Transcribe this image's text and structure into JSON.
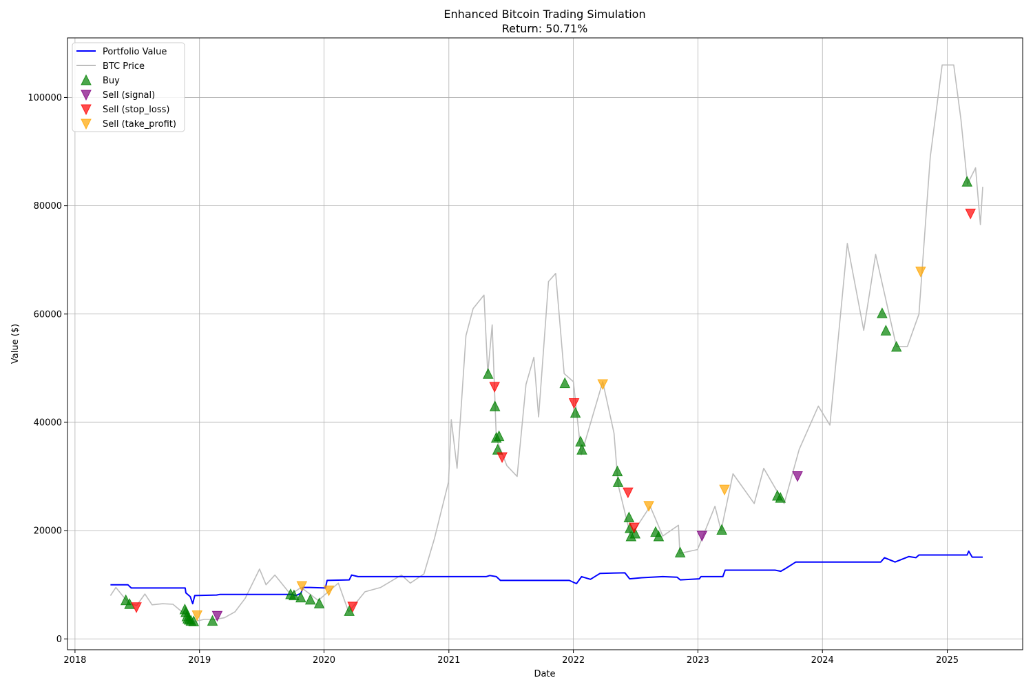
{
  "chart_data": {
    "type": "line",
    "title": "Enhanced Bitcoin Trading Simulation",
    "subtitle": "Return: 50.71%",
    "xlabel": "Date",
    "ylabel": "Value ($)",
    "xlim": [
      "2017-12-10",
      "2025-08-10"
    ],
    "ylim": [
      -2000,
      111000
    ],
    "x_ticks": [
      "2018",
      "2019",
      "2020",
      "2021",
      "2022",
      "2023",
      "2024",
      "2025"
    ],
    "y_ticks": [
      "0",
      "20000",
      "40000",
      "60000",
      "80000",
      "100000"
    ],
    "grid": true,
    "legend_position": "top-left",
    "colors": {
      "portfolio": "#0000ff",
      "btc": "#bdbdbd",
      "buy": "#008000",
      "sell_signal": "#800080",
      "sell_stop_loss": "#ff0000",
      "sell_take_profit": "#ffa500"
    },
    "series": [
      {
        "name": "Portfolio Value",
        "points": [
          [
            "2018-04-15",
            10000
          ],
          [
            "2018-06-05",
            10000
          ],
          [
            "2018-06-10",
            9700
          ],
          [
            "2018-06-15",
            9400
          ],
          [
            "2018-11-20",
            9400
          ],
          [
            "2018-11-22",
            8500
          ],
          [
            "2018-12-05",
            7800
          ],
          [
            "2018-12-12",
            6500
          ],
          [
            "2018-12-18",
            8000
          ],
          [
            "2019-02-20",
            8100
          ],
          [
            "2019-03-01",
            8200
          ],
          [
            "2019-10-01",
            8200
          ],
          [
            "2019-10-10",
            8000
          ],
          [
            "2019-10-25",
            8400
          ],
          [
            "2019-11-01",
            9500
          ],
          [
            "2019-11-20",
            9500
          ],
          [
            "2020-01-05",
            9400
          ],
          [
            "2020-01-10",
            10800
          ],
          [
            "2020-03-15",
            10900
          ],
          [
            "2020-03-22",
            11800
          ],
          [
            "2020-04-10",
            11500
          ],
          [
            "2021-04-20",
            11500
          ],
          [
            "2021-05-01",
            11700
          ],
          [
            "2021-05-20",
            11500
          ],
          [
            "2021-06-01",
            10800
          ],
          [
            "2021-12-20",
            10800
          ],
          [
            "2022-01-10",
            10200
          ],
          [
            "2022-01-25",
            11500
          ],
          [
            "2022-02-20",
            11000
          ],
          [
            "2022-03-20",
            12100
          ],
          [
            "2022-06-01",
            12200
          ],
          [
            "2022-06-15",
            11100
          ],
          [
            "2022-07-20",
            11300
          ],
          [
            "2022-09-20",
            11500
          ],
          [
            "2022-11-01",
            11400
          ],
          [
            "2022-11-10",
            10900
          ],
          [
            "2023-01-05",
            11100
          ],
          [
            "2023-01-10",
            11500
          ],
          [
            "2023-03-15",
            11500
          ],
          [
            "2023-03-22",
            12700
          ],
          [
            "2023-08-15",
            12700
          ],
          [
            "2023-09-01",
            12500
          ],
          [
            "2023-09-15",
            13000
          ],
          [
            "2023-10-15",
            14200
          ],
          [
            "2024-06-20",
            14200
          ],
          [
            "2024-07-01",
            15000
          ],
          [
            "2024-08-01",
            14200
          ],
          [
            "2024-09-10",
            15200
          ],
          [
            "2024-10-01",
            15000
          ],
          [
            "2024-10-10",
            15500
          ],
          [
            "2025-02-28",
            15500
          ],
          [
            "2025-03-05",
            16200
          ],
          [
            "2025-03-15",
            15100
          ],
          [
            "2025-04-15",
            15100
          ]
        ]
      },
      {
        "name": "BTC Price",
        "points": [
          [
            "2018-04-15",
            8000
          ],
          [
            "2018-05-01",
            9500
          ],
          [
            "2018-05-20",
            8000
          ],
          [
            "2018-06-10",
            6500
          ],
          [
            "2018-07-01",
            6200
          ],
          [
            "2018-07-25",
            8300
          ],
          [
            "2018-08-15",
            6300
          ],
          [
            "2018-09-15",
            6500
          ],
          [
            "2018-10-15",
            6400
          ],
          [
            "2018-11-20",
            4500
          ],
          [
            "2018-12-15",
            3200
          ],
          [
            "2019-01-15",
            3600
          ],
          [
            "2019-02-15",
            3600
          ],
          [
            "2019-03-15",
            3900
          ],
          [
            "2019-04-15",
            5000
          ],
          [
            "2019-05-15",
            7500
          ],
          [
            "2019-06-26",
            12900
          ],
          [
            "2019-07-15",
            10000
          ],
          [
            "2019-08-10",
            11800
          ],
          [
            "2019-09-25",
            8200
          ],
          [
            "2019-10-26",
            9500
          ],
          [
            "2019-12-15",
            7100
          ],
          [
            "2020-02-12",
            10300
          ],
          [
            "2020-03-13",
            5000
          ],
          [
            "2020-04-30",
            8700
          ],
          [
            "2020-06-15",
            9500
          ],
          [
            "2020-08-15",
            11800
          ],
          [
            "2020-09-10",
            10300
          ],
          [
            "2020-10-20",
            12000
          ],
          [
            "2020-11-20",
            18600
          ],
          [
            "2020-12-31",
            29000
          ],
          [
            "2021-01-08",
            40500
          ],
          [
            "2021-01-25",
            31500
          ],
          [
            "2021-02-20",
            56000
          ],
          [
            "2021-03-13",
            61000
          ],
          [
            "2021-04-14",
            63500
          ],
          [
            "2021-04-25",
            49000
          ],
          [
            "2021-05-08",
            58000
          ],
          [
            "2021-05-20",
            37000
          ],
          [
            "2021-06-20",
            32000
          ],
          [
            "2021-07-20",
            30000
          ],
          [
            "2021-08-15",
            47000
          ],
          [
            "2021-09-07",
            52000
          ],
          [
            "2021-09-21",
            41000
          ],
          [
            "2021-10-20",
            66000
          ],
          [
            "2021-11-10",
            67500
          ],
          [
            "2021-12-05",
            49000
          ],
          [
            "2022-01-01",
            47500
          ],
          [
            "2022-01-24",
            34000
          ],
          [
            "2022-03-28",
            47500
          ],
          [
            "2022-04-30",
            38000
          ],
          [
            "2022-05-12",
            28500
          ],
          [
            "2022-06-18",
            19000
          ],
          [
            "2022-08-14",
            24500
          ],
          [
            "2022-09-20",
            19000
          ],
          [
            "2022-11-05",
            21000
          ],
          [
            "2022-11-09",
            15800
          ],
          [
            "2022-12-31",
            16500
          ],
          [
            "2023-02-20",
            24500
          ],
          [
            "2023-03-10",
            20000
          ],
          [
            "2023-04-14",
            30500
          ],
          [
            "2023-06-15",
            25000
          ],
          [
            "2023-07-13",
            31500
          ],
          [
            "2023-09-11",
            25000
          ],
          [
            "2023-10-25",
            35000
          ],
          [
            "2023-12-20",
            43000
          ],
          [
            "2024-01-23",
            39500
          ],
          [
            "2024-03-14",
            73000
          ],
          [
            "2024-05-01",
            57000
          ],
          [
            "2024-06-05",
            71000
          ],
          [
            "2024-08-05",
            54000
          ],
          [
            "2024-09-06",
            54000
          ],
          [
            "2024-10-10",
            60000
          ],
          [
            "2024-11-12",
            89000
          ],
          [
            "2024-12-17",
            106000
          ],
          [
            "2025-01-20",
            106000
          ],
          [
            "2025-02-10",
            96000
          ],
          [
            "2025-03-01",
            84000
          ],
          [
            "2025-03-25",
            87000
          ],
          [
            "2025-04-08",
            76500
          ],
          [
            "2025-04-15",
            83500
          ]
        ]
      }
    ],
    "markers": {
      "buy": {
        "name": "Buy",
        "points": [
          [
            "2018-05-30",
            7200
          ],
          [
            "2018-06-10",
            6500
          ],
          [
            "2018-11-19",
            5500
          ],
          [
            "2018-11-22",
            5000
          ],
          [
            "2018-11-25",
            4200
          ],
          [
            "2018-11-28",
            3800
          ],
          [
            "2018-12-02",
            3600
          ],
          [
            "2018-12-07",
            3400
          ],
          [
            "2018-12-15",
            3300
          ],
          [
            "2019-02-08",
            3400
          ],
          [
            "2019-09-25",
            8300
          ],
          [
            "2019-10-05",
            8100
          ],
          [
            "2019-10-25",
            7700
          ],
          [
            "2019-11-22",
            7300
          ],
          [
            "2019-12-18",
            6600
          ],
          [
            "2020-03-15",
            5200
          ],
          [
            "2021-04-26",
            49000
          ],
          [
            "2021-05-16",
            43000
          ],
          [
            "2021-05-20",
            37200
          ],
          [
            "2021-05-24",
            35000
          ],
          [
            "2021-05-28",
            37500
          ],
          [
            "2021-12-07",
            47300
          ],
          [
            "2022-01-07",
            41800
          ],
          [
            "2022-01-22",
            36500
          ],
          [
            "2022-01-26",
            35000
          ],
          [
            "2022-05-10",
            31000
          ],
          [
            "2022-05-12",
            29000
          ],
          [
            "2022-06-13",
            22500
          ],
          [
            "2022-06-16",
            20500
          ],
          [
            "2022-06-19",
            19000
          ],
          [
            "2022-07-01",
            19500
          ],
          [
            "2022-08-30",
            19800
          ],
          [
            "2022-09-08",
            19000
          ],
          [
            "2022-11-10",
            16000
          ],
          [
            "2023-03-12",
            20200
          ],
          [
            "2023-08-22",
            26500
          ],
          [
            "2023-08-31",
            26100
          ],
          [
            "2024-06-24",
            60200
          ],
          [
            "2024-07-05",
            57000
          ],
          [
            "2024-08-05",
            54000
          ],
          [
            "2025-02-28",
            84500
          ]
        ]
      },
      "sell_signal": {
        "name": "Sell (signal)",
        "points": [
          [
            "2019-02-22",
            4200
          ],
          [
            "2023-01-13",
            19000
          ],
          [
            "2023-10-20",
            30000
          ]
        ]
      },
      "sell_stop_loss": {
        "name": "Sell (stop_loss)",
        "points": [
          [
            "2018-06-30",
            5800
          ],
          [
            "2020-03-25",
            5900
          ],
          [
            "2021-05-15",
            46500
          ],
          [
            "2021-06-06",
            33500
          ],
          [
            "2022-01-03",
            43500
          ],
          [
            "2022-06-10",
            27000
          ],
          [
            "2022-06-28",
            20500
          ],
          [
            "2025-03-10",
            78500
          ]
        ]
      },
      "sell_take_profit": {
        "name": "Sell (take_profit)",
        "points": [
          [
            "2018-12-25",
            4300
          ],
          [
            "2019-10-28",
            9700
          ],
          [
            "2020-01-15",
            8900
          ],
          [
            "2022-03-28",
            47000
          ],
          [
            "2022-08-10",
            24500
          ],
          [
            "2023-03-20",
            27500
          ],
          [
            "2024-10-15",
            67800
          ]
        ]
      }
    }
  },
  "legend": {
    "portfolio_label": "Portfolio Value",
    "btc_label": "BTC Price",
    "buy_label": "Buy",
    "sell_signal_label": "Sell (signal)",
    "sell_stop_loss_label": "Sell (stop_loss)",
    "sell_take_profit_label": "Sell (take_profit)"
  }
}
